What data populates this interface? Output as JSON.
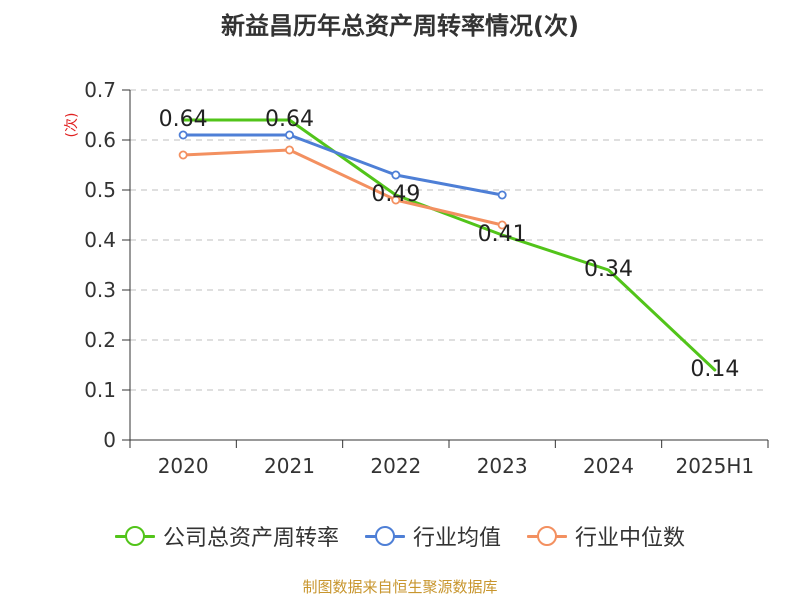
{
  "chart_data": {
    "type": "line",
    "title": "新益昌历年总资产周转率情况(次)",
    "ylabel": "(次)",
    "categories": [
      "2020",
      "2021",
      "2022",
      "2023",
      "2024",
      "2025H1"
    ],
    "ylim": [
      0,
      0.7
    ],
    "yticks": [
      "0",
      "0.1",
      "0.2",
      "0.3",
      "0.4",
      "0.5",
      "0.6",
      "0.7"
    ],
    "grid": true,
    "legend_position": "bottom",
    "series": [
      {
        "name": "公司总资产周转率",
        "color": "#52c41a",
        "values": [
          0.64,
          0.64,
          0.49,
          0.41,
          0.34,
          0.14
        ],
        "labels": [
          "0.64",
          "0.64",
          "0.49",
          "0.41",
          "0.34",
          "0.14"
        ],
        "markers": false
      },
      {
        "name": "行业均值",
        "color": "#4e7fd6",
        "values": [
          0.61,
          0.61,
          0.53,
          0.49,
          null,
          null
        ],
        "markers": true
      },
      {
        "name": "行业中位数",
        "color": "#f39060",
        "values": [
          0.57,
          0.58,
          0.48,
          0.43,
          null,
          null
        ],
        "markers": true
      }
    ]
  },
  "source": "制图数据来自恒生聚源数据库",
  "colors": {
    "source_text": "#c8962e",
    "axis": "#333333",
    "grid": "#cccccc",
    "ylabel": "#e02020"
  }
}
